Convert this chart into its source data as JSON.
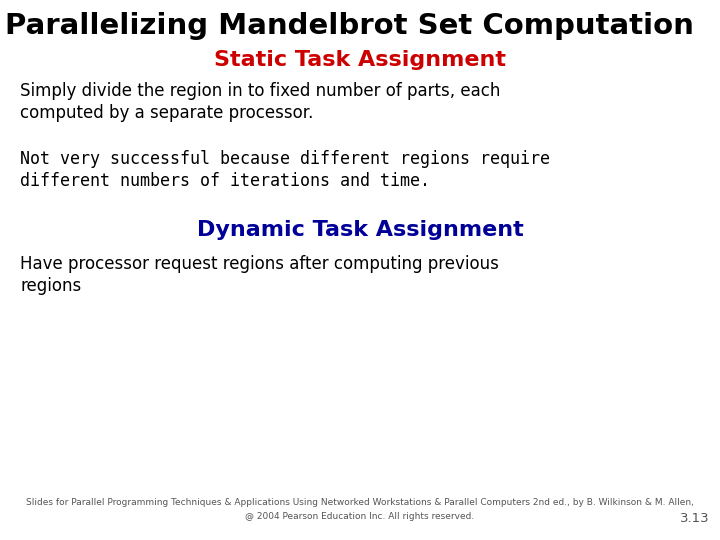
{
  "title": "Parallelizing Mandelbrot Set Computation",
  "title_fontsize": 21,
  "title_color": "#000000",
  "title_bold": true,
  "static_heading": "Static Task Assignment",
  "static_heading_color": "#cc0000",
  "static_heading_fontsize": 16,
  "static_heading_bold": true,
  "static_text1": "Simply divide the region in to fixed number of parts, each\ncomputed by a separate processor.",
  "static_text1_fontsize": 12,
  "static_text2": "Not very successful because different regions require\ndifferent numbers of iterations and time.",
  "static_text2_fontsize": 12,
  "dynamic_heading": "Dynamic Task Assignment",
  "dynamic_heading_color": "#000099",
  "dynamic_heading_fontsize": 16,
  "dynamic_heading_bold": true,
  "dynamic_text": "Have processor request regions after computing previous\nregions",
  "dynamic_text_fontsize": 12,
  "footer_line1": "Slides for Parallel Programming Techniques & Applications Using Networked Workstations & Parallel Computers 2nd ed., by B. Wilkinson & M. Allen,",
  "footer_line2": "@ 2004 Pearson Education Inc. All rights reserved.",
  "footer_page": "3.13",
  "footer_fontsize": 6.5,
  "background_color": "#ffffff"
}
